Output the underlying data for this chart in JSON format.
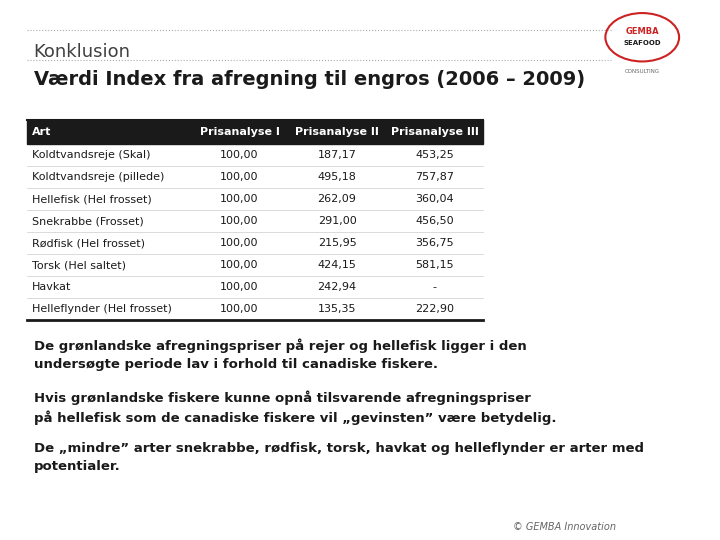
{
  "title_top": "Konklusion",
  "title_main": "Værdi Index fra afregning til engros (2006 – 2009)",
  "table_header": [
    "Art",
    "Prisanalyse I",
    "Prisanalyse II",
    "Prisanalyse III"
  ],
  "table_rows": [
    [
      "Koldtvandsreje (Skal)",
      "100,00",
      "187,17",
      "453,25"
    ],
    [
      "Koldtvandsreje (pillede)",
      "100,00",
      "495,18",
      "757,87"
    ],
    [
      "Hellefisk (Hel frosset)",
      "100,00",
      "262,09",
      "360,04"
    ],
    [
      "Snekrabbe (Frosset)",
      "100,00",
      "291,00",
      "456,50"
    ],
    [
      "Rødfisk (Hel frosset)",
      "100,00",
      "215,95",
      "356,75"
    ],
    [
      "Torsk (Hel saltet)",
      "100,00",
      "424,15",
      "581,15"
    ],
    [
      "Havkat",
      "100,00",
      "242,94",
      "-"
    ],
    [
      "Helleflynder (Hel frosset)",
      "100,00",
      "135,35",
      "222,90"
    ]
  ],
  "para1": "De grønlandske afregningspriser på rejer og hellefisk ligger i den\nundersøgte periode lav i forhold til canadiske fiskere.",
  "para2": "Hvis grønlandske fiskere kunne opnå tilsvarende afregningspriser\npå hellefisk som de canadiske fiskere vil „gevinsten” være betydelig.",
  "para3": "De „mindre” arter snekrabbe, rødfisk, torsk, havkat og helleflynder er arter med\npotentialer.",
  "footer": "© GEMBA Innovation",
  "bg_color": "#ffffff",
  "header_bg": "#1a1a1a",
  "header_fg": "#ffffff",
  "row_alt_bg": "#f0f0f0",
  "row_bg": "#ffffff",
  "border_color": "#1a1a1a",
  "title_top_color": "#404040",
  "title_main_color": "#1a1a1a",
  "text_color": "#1a1a1a",
  "footer_color": "#666666"
}
